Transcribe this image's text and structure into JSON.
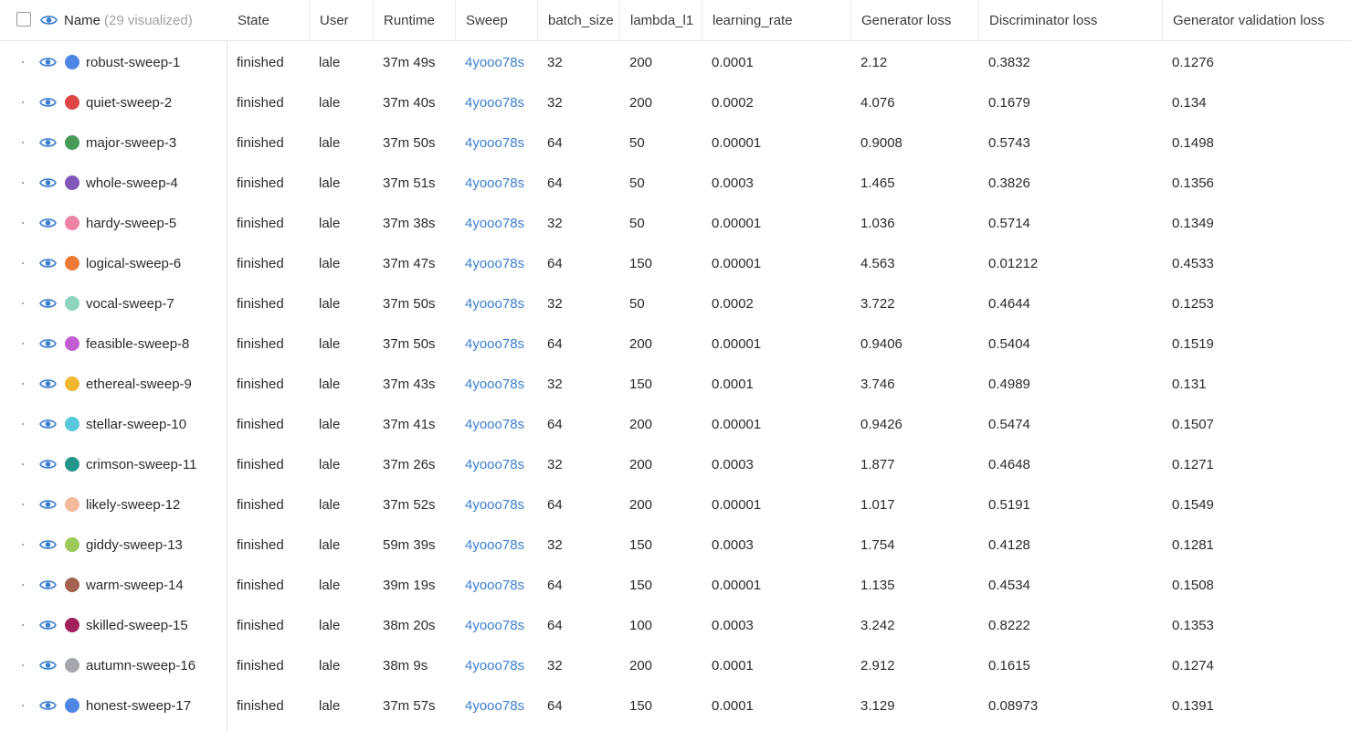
{
  "header": {
    "name_label": "Name",
    "name_count": "(29 visualized)",
    "columns": [
      "State",
      "User",
      "Runtime",
      "Sweep",
      "batch_size",
      "lambda_l1",
      "learning_rate",
      "Generator loss",
      "Discriminator loss",
      "Generator validation loss"
    ]
  },
  "rows": [
    {
      "name": "robust-sweep-1",
      "color": "#4e86e6",
      "state": "finished",
      "user": "lale",
      "runtime": "37m 49s",
      "sweep": "4yooo78s",
      "batch_size": "32",
      "lambda_l1": "200",
      "learning_rate": "0.0001",
      "gen_loss": "2.12",
      "disc_loss": "0.3832",
      "gen_val_loss": "0.1276"
    },
    {
      "name": "quiet-sweep-2",
      "color": "#e04646",
      "state": "finished",
      "user": "lale",
      "runtime": "37m 40s",
      "sweep": "4yooo78s",
      "batch_size": "32",
      "lambda_l1": "200",
      "learning_rate": "0.0002",
      "gen_loss": "4.076",
      "disc_loss": "0.1679",
      "gen_val_loss": "0.134"
    },
    {
      "name": "major-sweep-3",
      "color": "#479b59",
      "state": "finished",
      "user": "lale",
      "runtime": "37m 50s",
      "sweep": "4yooo78s",
      "batch_size": "64",
      "lambda_l1": "50",
      "learning_rate": "0.00001",
      "gen_loss": "0.9008",
      "disc_loss": "0.5743",
      "gen_val_loss": "0.1498"
    },
    {
      "name": "whole-sweep-4",
      "color": "#8057b8",
      "state": "finished",
      "user": "lale",
      "runtime": "37m 51s",
      "sweep": "4yooo78s",
      "batch_size": "64",
      "lambda_l1": "50",
      "learning_rate": "0.0003",
      "gen_loss": "1.465",
      "disc_loss": "0.3826",
      "gen_val_loss": "0.1356"
    },
    {
      "name": "hardy-sweep-5",
      "color": "#ee82a3",
      "state": "finished",
      "user": "lale",
      "runtime": "37m 38s",
      "sweep": "4yooo78s",
      "batch_size": "32",
      "lambda_l1": "50",
      "learning_rate": "0.00001",
      "gen_loss": "1.036",
      "disc_loss": "0.5714",
      "gen_val_loss": "0.1349"
    },
    {
      "name": "logical-sweep-6",
      "color": "#ef7a37",
      "state": "finished",
      "user": "lale",
      "runtime": "37m 47s",
      "sweep": "4yooo78s",
      "batch_size": "64",
      "lambda_l1": "150",
      "learning_rate": "0.00001",
      "gen_loss": "4.563",
      "disc_loss": "0.01212",
      "gen_val_loss": "0.4533"
    },
    {
      "name": "vocal-sweep-7",
      "color": "#8fd3c1",
      "state": "finished",
      "user": "lale",
      "runtime": "37m 50s",
      "sweep": "4yooo78s",
      "batch_size": "32",
      "lambda_l1": "50",
      "learning_rate": "0.0002",
      "gen_loss": "3.722",
      "disc_loss": "0.4644",
      "gen_val_loss": "0.1253"
    },
    {
      "name": "feasible-sweep-8",
      "color": "#c35ed2",
      "state": "finished",
      "user": "lale",
      "runtime": "37m 50s",
      "sweep": "4yooo78s",
      "batch_size": "64",
      "lambda_l1": "200",
      "learning_rate": "0.00001",
      "gen_loss": "0.9406",
      "disc_loss": "0.5404",
      "gen_val_loss": "0.1519"
    },
    {
      "name": "ethereal-sweep-9",
      "color": "#efb72d",
      "state": "finished",
      "user": "lale",
      "runtime": "37m 43s",
      "sweep": "4yooo78s",
      "batch_size": "32",
      "lambda_l1": "150",
      "learning_rate": "0.0001",
      "gen_loss": "3.746",
      "disc_loss": "0.4989",
      "gen_val_loss": "0.131"
    },
    {
      "name": "stellar-sweep-10",
      "color": "#5ac8dc",
      "state": "finished",
      "user": "lale",
      "runtime": "37m 41s",
      "sweep": "4yooo78s",
      "batch_size": "64",
      "lambda_l1": "200",
      "learning_rate": "0.00001",
      "gen_loss": "0.9426",
      "disc_loss": "0.5474",
      "gen_val_loss": "0.1507"
    },
    {
      "name": "crimson-sweep-11",
      "color": "#24958a",
      "state": "finished",
      "user": "lale",
      "runtime": "37m 26s",
      "sweep": "4yooo78s",
      "batch_size": "32",
      "lambda_l1": "200",
      "learning_rate": "0.0003",
      "gen_loss": "1.877",
      "disc_loss": "0.4648",
      "gen_val_loss": "0.1271"
    },
    {
      "name": "likely-sweep-12",
      "color": "#f2b99b",
      "state": "finished",
      "user": "lale",
      "runtime": "37m 52s",
      "sweep": "4yooo78s",
      "batch_size": "64",
      "lambda_l1": "200",
      "learning_rate": "0.00001",
      "gen_loss": "1.017",
      "disc_loss": "0.5191",
      "gen_val_loss": "0.1549"
    },
    {
      "name": "giddy-sweep-13",
      "color": "#9dc85a",
      "state": "finished",
      "user": "lale",
      "runtime": "59m 39s",
      "sweep": "4yooo78s",
      "batch_size": "32",
      "lambda_l1": "150",
      "learning_rate": "0.0003",
      "gen_loss": "1.754",
      "disc_loss": "0.4128",
      "gen_val_loss": "0.1281"
    },
    {
      "name": "warm-sweep-14",
      "color": "#a3634f",
      "state": "finished",
      "user": "lale",
      "runtime": "39m 19s",
      "sweep": "4yooo78s",
      "batch_size": "64",
      "lambda_l1": "150",
      "learning_rate": "0.00001",
      "gen_loss": "1.135",
      "disc_loss": "0.4534",
      "gen_val_loss": "0.1508"
    },
    {
      "name": "skilled-sweep-15",
      "color": "#a1205b",
      "state": "finished",
      "user": "lale",
      "runtime": "38m 20s",
      "sweep": "4yooo78s",
      "batch_size": "64",
      "lambda_l1": "100",
      "learning_rate": "0.0003",
      "gen_loss": "3.242",
      "disc_loss": "0.8222",
      "gen_val_loss": "0.1353"
    },
    {
      "name": "autumn-sweep-16",
      "color": "#a3a6aa",
      "state": "finished",
      "user": "lale",
      "runtime": "38m 9s",
      "sweep": "4yooo78s",
      "batch_size": "32",
      "lambda_l1": "200",
      "learning_rate": "0.0001",
      "gen_loss": "2.912",
      "disc_loss": "0.1615",
      "gen_val_loss": "0.1274"
    },
    {
      "name": "honest-sweep-17",
      "color": "#4e86e6",
      "state": "finished",
      "user": "lale",
      "runtime": "37m 57s",
      "sweep": "4yooo78s",
      "batch_size": "64",
      "lambda_l1": "150",
      "learning_rate": "0.0001",
      "gen_loss": "3.129",
      "disc_loss": "0.08973",
      "gen_val_loss": "0.1391"
    }
  ],
  "colors": {
    "link": "#3a7fcf",
    "eye": "#3a7fcf",
    "header_text": "#3a3a3a",
    "muted": "#a0a0a0"
  }
}
